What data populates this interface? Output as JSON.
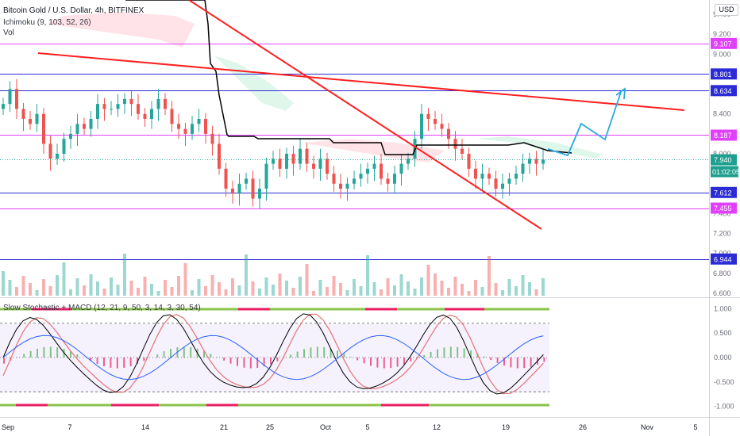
{
  "header": {
    "title": "Bitcoin Gold / U.S. Dollar, 4h, BITFINEX",
    "indicator1": "Ichimoku (9, 103, 52, 26)",
    "indicator2": "Vol",
    "osc_title": "Slow Stochastic + MACD (12, 21, 9, 50, 3, 14, 3, 30, 54)",
    "currency": "USD"
  },
  "colors": {
    "magenta_line": "#e040fb",
    "blue_line": "#2b2bd6",
    "trend_red": "#ff1f1f",
    "baseline": "#000000",
    "projection": "#2aa8e0",
    "up": "#26a69a",
    "down": "#ef5350"
  },
  "chart_data": {
    "type": "candlestick",
    "price_axis": {
      "min": 6.6,
      "max": 9.4,
      "ticks": [
        "9.400",
        "9.200",
        "9.000",
        "8.800",
        "8.600",
        "8.400",
        "8.200",
        "8.000",
        "7.800",
        "7.600",
        "7.400",
        "7.200",
        "7.000",
        "6.800",
        "6.600"
      ]
    },
    "levels": [
      {
        "value": "9.107",
        "color": "magenta"
      },
      {
        "value": "8.801",
        "color": "blue"
      },
      {
        "value": "8.634",
        "color": "blue"
      },
      {
        "value": "8.187",
        "color": "magenta"
      },
      {
        "value": "7.612",
        "color": "blue"
      },
      {
        "value": "7.455",
        "color": "magenta"
      },
      {
        "value": "6.944",
        "color": "blue"
      }
    ],
    "current_price": "7.940",
    "countdown": "01:02:05",
    "x_ticks": [
      "Sep",
      "7",
      "14",
      "21",
      "25",
      "Oct",
      "5",
      "12",
      "19",
      "26",
      "Nov",
      "5"
    ],
    "osc_axis": {
      "min": -1.1,
      "max": 1.1,
      "ticks": [
        "1.000",
        "0.500",
        "0.000",
        "-0.500",
        "-1.000"
      ],
      "bands": [
        0.7,
        -0.7
      ]
    },
    "closes": [
      8.5,
      8.65,
      8.45,
      8.35,
      8.3,
      8.4,
      8.1,
      7.95,
      8.0,
      8.15,
      8.2,
      8.3,
      8.25,
      8.35,
      8.5,
      8.45,
      8.45,
      8.5,
      8.55,
      8.5,
      8.4,
      8.35,
      8.45,
      8.55,
      8.45,
      8.3,
      8.25,
      8.2,
      8.3,
      8.35,
      8.2,
      8.1,
      7.85,
      7.65,
      7.6,
      7.7,
      7.75,
      7.55,
      7.65,
      7.9,
      7.95,
      7.85,
      8.0,
      7.9,
      8.05,
      7.9,
      7.85,
      7.95,
      7.8,
      7.7,
      7.65,
      7.7,
      7.75,
      7.8,
      7.85,
      7.9,
      7.75,
      7.7,
      7.8,
      7.9,
      7.95,
      8.15,
      8.4,
      8.35,
      8.3,
      8.25,
      8.15,
      8.05,
      8.0,
      7.85,
      7.75,
      7.8,
      7.75,
      7.65,
      7.7,
      7.75,
      7.8,
      7.9,
      7.95,
      7.9,
      7.94
    ]
  }
}
